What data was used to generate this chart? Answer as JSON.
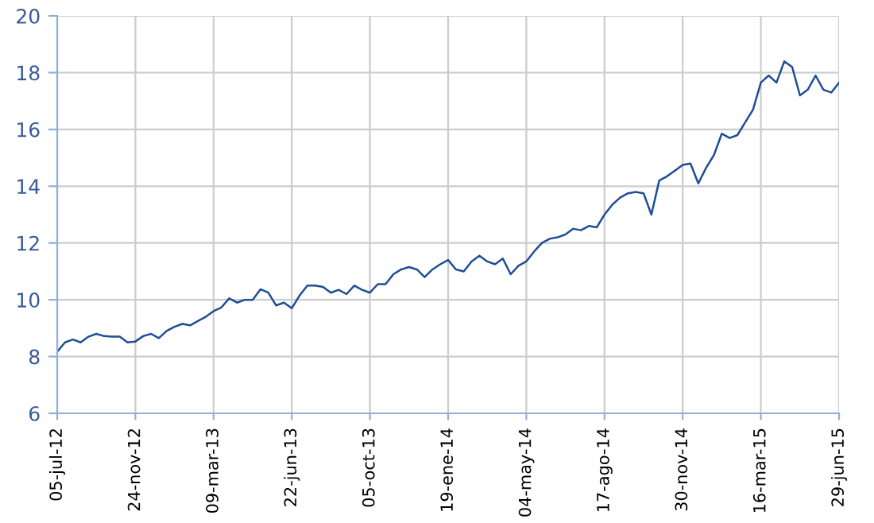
{
  "chart_data": {
    "type": "line",
    "categories": [
      "05-jul-12",
      null,
      null,
      null,
      null,
      null,
      null,
      null,
      null,
      null,
      "24-nov-12",
      null,
      null,
      null,
      null,
      null,
      null,
      null,
      null,
      null,
      "09-mar-13",
      null,
      null,
      null,
      null,
      null,
      null,
      null,
      null,
      null,
      "22-jun-13",
      null,
      null,
      null,
      null,
      null,
      null,
      null,
      null,
      null,
      "05-oct-13",
      null,
      null,
      null,
      null,
      null,
      null,
      null,
      null,
      null,
      "19-ene-14",
      null,
      null,
      null,
      null,
      null,
      null,
      null,
      null,
      null,
      "04-may-14",
      null,
      null,
      null,
      null,
      null,
      null,
      null,
      null,
      null,
      "17-ago-14",
      null,
      null,
      null,
      null,
      null,
      null,
      null,
      null,
      null,
      "30-nov-14",
      null,
      null,
      null,
      null,
      null,
      null,
      null,
      null,
      null,
      "16-mar-15",
      null,
      null,
      null,
      null,
      null,
      null,
      null,
      null,
      null,
      "29-jun-15"
    ],
    "series": [
      {
        "color": "#1f4e96",
        "values": [
          8.17,
          8.5,
          8.6,
          8.5,
          8.7,
          8.8,
          8.72,
          8.7,
          8.7,
          8.5,
          8.53,
          8.72,
          8.8,
          8.65,
          8.9,
          9.05,
          9.15,
          9.1,
          9.25,
          9.4,
          9.6,
          9.73,
          10.05,
          9.9,
          10.0,
          10.0,
          10.37,
          10.25,
          9.8,
          9.9,
          9.7,
          10.15,
          10.5,
          10.5,
          10.45,
          10.25,
          10.35,
          10.2,
          10.5,
          10.35,
          10.25,
          10.55,
          10.55,
          10.9,
          11.07,
          11.15,
          11.07,
          10.8,
          11.07,
          11.25,
          11.4,
          11.07,
          11.0,
          11.35,
          11.55,
          11.35,
          11.25,
          11.45,
          10.9,
          11.2,
          11.35,
          11.7,
          12.0,
          12.15,
          12.2,
          12.3,
          12.5,
          12.45,
          12.6,
          12.55,
          13.0,
          13.35,
          13.6,
          13.75,
          13.8,
          13.75,
          13.0,
          14.2,
          14.35,
          14.55,
          14.75,
          14.8,
          14.1,
          14.65,
          15.1,
          15.85,
          15.7,
          15.8,
          16.25,
          16.7,
          17.65,
          17.9,
          17.65,
          18.4,
          18.2,
          17.2,
          17.4,
          17.9,
          17.4,
          17.3,
          17.65
        ]
      }
    ],
    "ylim": [
      6,
      20
    ],
    "yticks": [
      6,
      8,
      10,
      12,
      14,
      16,
      18,
      20
    ],
    "grid": true,
    "marker": "none",
    "line_style": "solid"
  }
}
